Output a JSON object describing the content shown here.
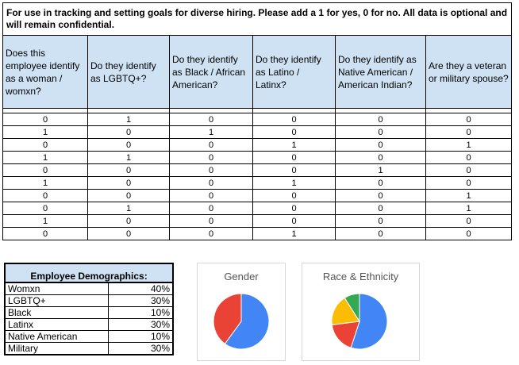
{
  "notice": "For use in tracking and setting goals for diverse hiring. Please add a 1 for yes, 0 for no. All data is optional and will remain confidential.",
  "headers": [
    "Does this employee identify as a woman / womxn?",
    "Do they identify as LGBTQ+?",
    "Do they identify as Black / African American?",
    "Do they identify as Latino / Latinx?",
    "Do they identify as Native American / American Indian?",
    "Are they a veteran or military spouse?"
  ],
  "rows": [
    [
      "0",
      "1",
      "0",
      "0",
      "0",
      "0"
    ],
    [
      "1",
      "0",
      "1",
      "0",
      "0",
      "0"
    ],
    [
      "0",
      "0",
      "0",
      "1",
      "0",
      "1"
    ],
    [
      "1",
      "1",
      "0",
      "0",
      "0",
      "0"
    ],
    [
      "0",
      "0",
      "0",
      "0",
      "1",
      "0"
    ],
    [
      "1",
      "0",
      "0",
      "1",
      "0",
      "0"
    ],
    [
      "0",
      "0",
      "0",
      "0",
      "0",
      "1"
    ],
    [
      "0",
      "1",
      "0",
      "0",
      "0",
      "1"
    ],
    [
      "1",
      "0",
      "0",
      "0",
      "0",
      "0"
    ],
    [
      "0",
      "0",
      "0",
      "1",
      "0",
      "0"
    ]
  ],
  "demographics": {
    "title": "Employee Demographics:",
    "items": [
      {
        "label": "Womxn",
        "value": "40%"
      },
      {
        "label": "LGBTQ+",
        "value": "30%"
      },
      {
        "label": "Black",
        "value": "10%"
      },
      {
        "label": "Latinx",
        "value": "30%"
      },
      {
        "label": "Native American",
        "value": "10%"
      },
      {
        "label": "Military",
        "value": "30%"
      }
    ]
  },
  "chart_data": [
    {
      "type": "pie",
      "title": "Gender",
      "slices": [
        {
          "value": 60,
          "color": "#4285f4"
        },
        {
          "value": 40,
          "color": "#ea4335"
        }
      ]
    },
    {
      "type": "pie",
      "title": "Race & Ethnicity",
      "slices": [
        {
          "value": 55,
          "color": "#4285f4"
        },
        {
          "value": 18,
          "color": "#ea4335"
        },
        {
          "value": 18,
          "color": "#fbbc04"
        },
        {
          "value": 9,
          "color": "#34a853"
        }
      ]
    }
  ]
}
